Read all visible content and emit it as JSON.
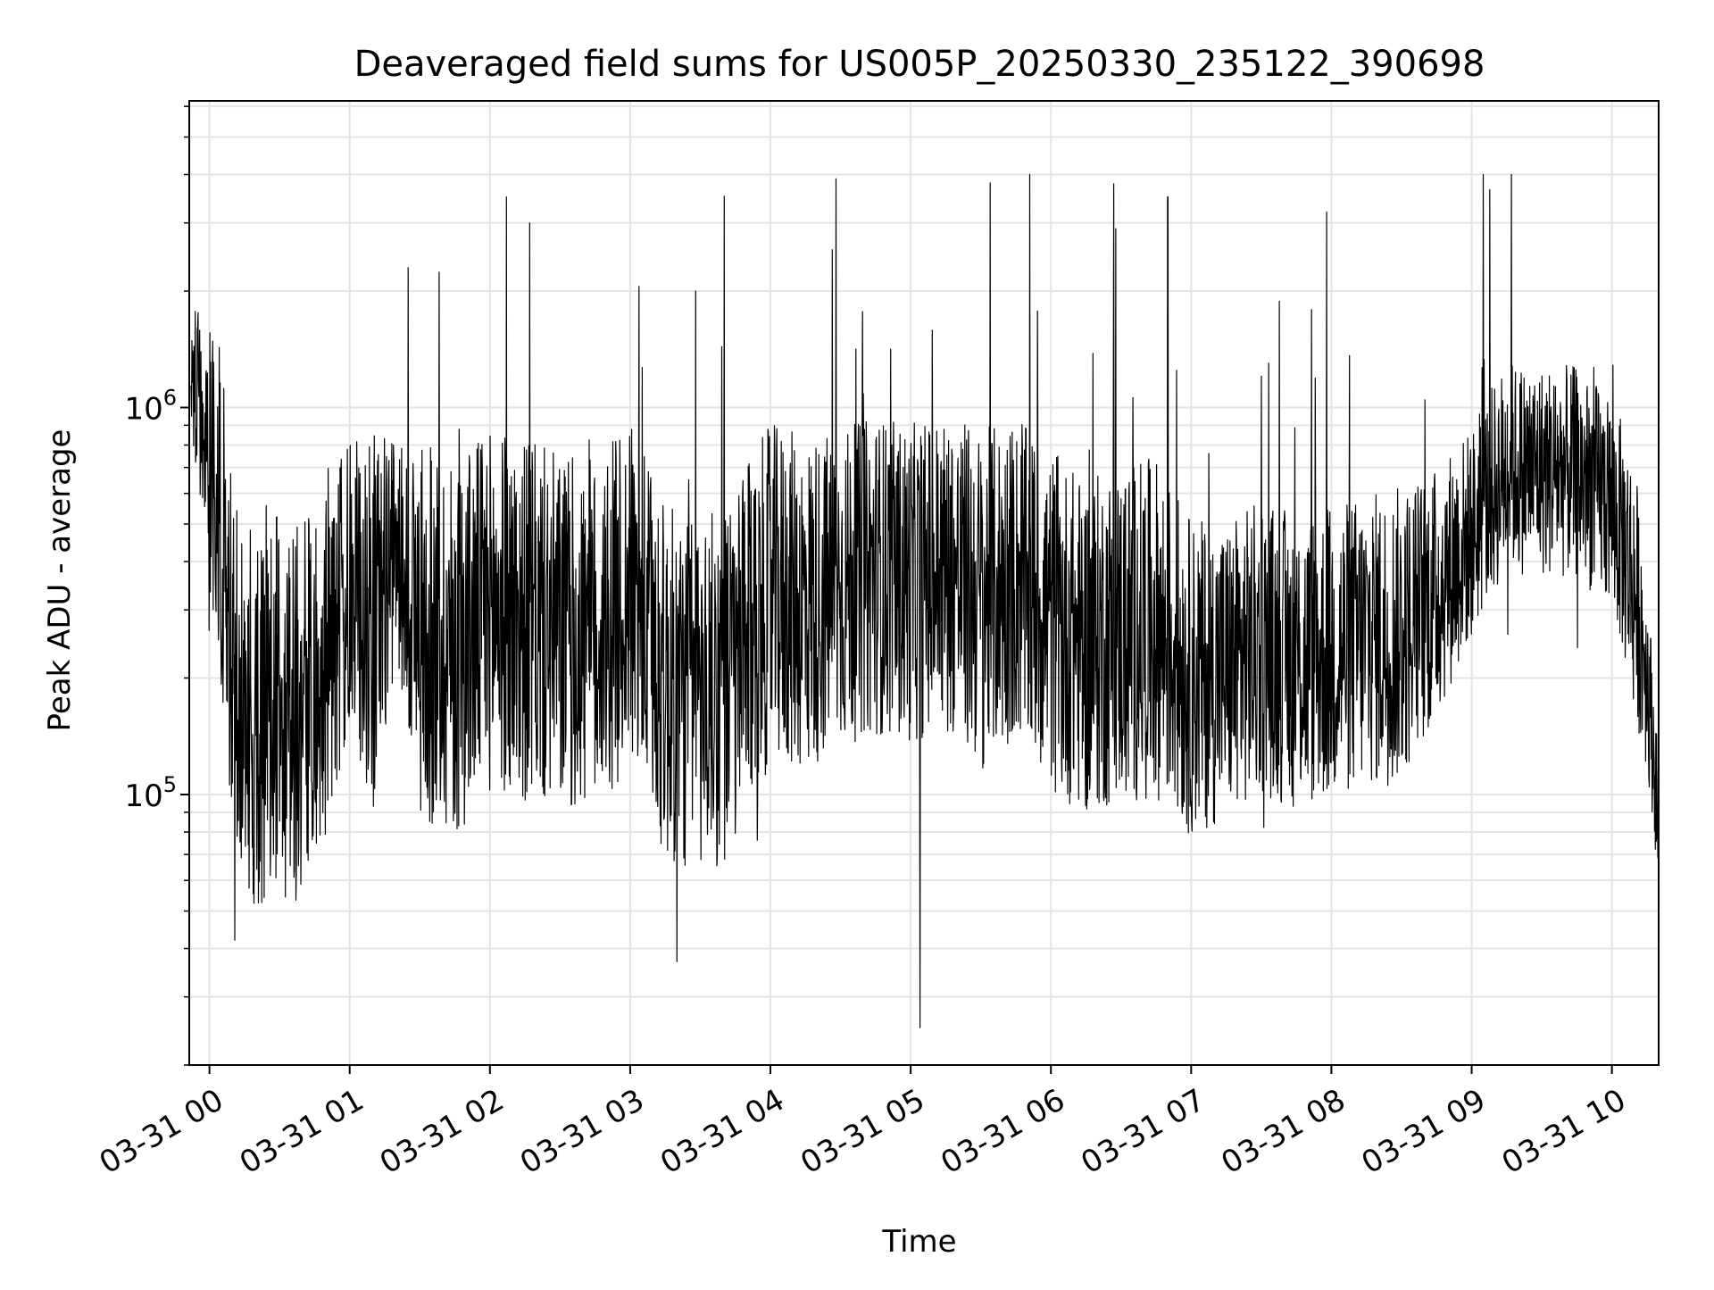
{
  "chart_data": {
    "type": "line",
    "title": "Deaveraged field sums for US005P_20250330_235122_390698",
    "xlabel": "Time",
    "ylabel": "Peak ADU - average",
    "yscale": "log",
    "ylim": [
      20000,
      6200000
    ],
    "xlim": [
      "2025-03-30T23:51:22",
      "2025-03-31T10:20:00"
    ],
    "grid": true,
    "line_color": "#000000",
    "x_tick_labels": [
      "03-31 00",
      "03-31 01",
      "03-31 02",
      "03-31 03",
      "03-31 04",
      "03-31 05",
      "03-31 06",
      "03-31 07",
      "03-31 08",
      "03-31 09",
      "03-31 10"
    ],
    "x_tick_values": [
      "2025-03-31T00:00",
      "2025-03-31T01:00",
      "2025-03-31T02:00",
      "2025-03-31T03:00",
      "2025-03-31T04:00",
      "2025-03-31T05:00",
      "2025-03-31T06:00",
      "2025-03-31T07:00",
      "2025-03-31T08:00",
      "2025-03-31T09:00",
      "2025-03-31T10:00"
    ],
    "y_major_ticks": [
      {
        "value": 100000,
        "base": "10",
        "exp": "5"
      },
      {
        "value": 1000000,
        "base": "10",
        "exp": "6"
      }
    ],
    "series": [
      {
        "envelope": {
          "x": [
            "2025-03-30T23:52",
            "2025-03-31T00:05",
            "2025-03-31T00:10",
            "2025-03-31T00:20",
            "2025-03-31T00:30",
            "2025-03-31T00:40",
            "2025-03-31T00:50",
            "2025-03-31T01:00",
            "2025-03-31T01:10",
            "2025-03-31T01:20",
            "2025-03-31T01:30",
            "2025-03-31T01:45",
            "2025-03-31T02:00",
            "2025-03-31T02:15",
            "2025-03-31T02:30",
            "2025-03-31T02:45",
            "2025-03-31T03:00",
            "2025-03-31T03:15",
            "2025-03-31T03:30",
            "2025-03-31T03:45",
            "2025-03-31T04:00",
            "2025-03-31T04:15",
            "2025-03-31T04:30",
            "2025-03-31T04:45",
            "2025-03-31T05:00",
            "2025-03-31T05:15",
            "2025-03-31T05:30",
            "2025-03-31T05:45",
            "2025-03-31T06:00",
            "2025-03-31T06:15",
            "2025-03-31T06:30",
            "2025-03-31T06:45",
            "2025-03-31T07:00",
            "2025-03-31T07:15",
            "2025-03-31T07:30",
            "2025-03-31T07:45",
            "2025-03-31T08:00",
            "2025-03-31T08:15",
            "2025-03-31T08:30",
            "2025-03-31T08:45",
            "2025-03-31T09:00",
            "2025-03-31T09:15",
            "2025-03-31T09:30",
            "2025-03-31T09:45",
            "2025-03-31T10:00",
            "2025-03-31T10:10",
            "2025-03-31T10:20"
          ],
          "center": [
            1150000,
            500000,
            180000,
            150000,
            170000,
            160000,
            220000,
            330000,
            280000,
            420000,
            260000,
            240000,
            300000,
            280000,
            260000,
            250000,
            330000,
            190000,
            180000,
            200000,
            330000,
            310000,
            340000,
            370000,
            350000,
            380000,
            320000,
            360000,
            280000,
            240000,
            260000,
            270000,
            200000,
            210000,
            240000,
            220000,
            230000,
            250000,
            260000,
            330000,
            470000,
            700000,
            690000,
            680000,
            560000,
            330000,
            75000
          ],
          "spread": [
            0.35,
            0.8,
            0.9,
            0.9,
            0.9,
            0.9,
            0.8,
            0.7,
            0.9,
            0.5,
            0.9,
            0.9,
            0.85,
            0.85,
            0.85,
            0.85,
            0.8,
            0.85,
            0.85,
            0.85,
            0.8,
            0.8,
            0.75,
            0.75,
            0.75,
            0.75,
            0.8,
            0.75,
            0.8,
            0.8,
            0.8,
            0.8,
            0.75,
            0.7,
            0.7,
            0.7,
            0.7,
            0.7,
            0.7,
            0.6,
            0.5,
            0.5,
            0.5,
            0.5,
            0.5,
            0.6,
            0.3
          ]
        },
        "spikes": [
          {
            "x": "2025-03-31T01:25",
            "y": 2300000
          },
          {
            "x": "2025-03-31T02:07",
            "y": 3500000
          },
          {
            "x": "2025-03-31T02:17",
            "y": 3000000
          },
          {
            "x": "2025-03-31T03:28",
            "y": 2000000
          },
          {
            "x": "2025-03-31T04:28",
            "y": 3900000
          },
          {
            "x": "2025-03-31T05:51",
            "y": 4000000
          },
          {
            "x": "2025-03-31T06:50",
            "y": 3500000
          },
          {
            "x": "2025-03-31T07:58",
            "y": 3200000
          },
          {
            "x": "2025-03-31T09:05",
            "y": 4000000
          },
          {
            "x": "2025-03-31T09:17",
            "y": 4000000
          },
          {
            "x": "2025-03-31T05:04",
            "y": 25000
          },
          {
            "x": "2025-03-31T03:20",
            "y": 37000
          }
        ]
      }
    ]
  }
}
